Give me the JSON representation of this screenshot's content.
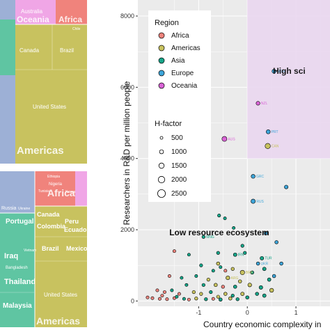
{
  "treemap_top": {
    "tiles": [
      {
        "label": "Australia",
        "region": "Oceania",
        "value": 60,
        "size": "small"
      },
      {
        "label": "Oceania",
        "region": "Oceania",
        "value": 60,
        "size": "region"
      },
      {
        "label": "Africa",
        "region": "Africa",
        "value": 30,
        "size": "region"
      },
      {
        "label": "Canada",
        "region": "Americas",
        "value": 80,
        "size": "small"
      },
      {
        "label": "Brazil",
        "region": "Americas",
        "value": 70,
        "size": "small"
      },
      {
        "label": "Chile",
        "region": "Americas",
        "value": 10,
        "size": "tiny"
      },
      {
        "label": "United States",
        "region": "Americas",
        "value": 500,
        "size": "small"
      },
      {
        "label": "Americas",
        "region": "Americas",
        "value": 0,
        "size": "region"
      }
    ]
  },
  "treemap_bottom": {
    "tiles": [
      {
        "label": "Africa",
        "region": "Africa",
        "size": "region"
      },
      {
        "label": "Ethiopia",
        "region": "Africa",
        "size": "tiny"
      },
      {
        "label": "Nigeria",
        "region": "Africa",
        "size": "tiny"
      },
      {
        "label": "Tunisia",
        "region": "Africa",
        "size": "tiny"
      },
      {
        "label": "Kenya",
        "region": "Africa",
        "size": "tiny"
      },
      {
        "label": "Russia",
        "region": "Europe",
        "size": "tiny"
      },
      {
        "label": "Ukraine",
        "region": "Europe",
        "size": "tiny"
      },
      {
        "label": "Portugal",
        "region": "Europe",
        "size": "medium"
      },
      {
        "label": "Canada",
        "region": "Americas",
        "size": "medium"
      },
      {
        "label": "Colombia",
        "region": "Americas",
        "size": "medium"
      },
      {
        "label": "Peru",
        "region": "Americas",
        "size": "medium"
      },
      {
        "label": "Ecuador",
        "region": "Americas",
        "size": "medium"
      },
      {
        "label": "Brazil",
        "region": "Americas",
        "size": "medium"
      },
      {
        "label": "Mexico",
        "region": "Americas",
        "size": "medium"
      },
      {
        "label": "Malaysia",
        "region": "Asia",
        "size": "medium"
      },
      {
        "label": "Thailand",
        "region": "Asia",
        "size": "large"
      },
      {
        "label": "Bangladesh",
        "region": "Asia",
        "size": "small"
      },
      {
        "label": "Iraq",
        "region": "Asia",
        "size": "large"
      },
      {
        "label": "Vietnam",
        "region": "Asia",
        "size": "tiny"
      },
      {
        "label": "United States",
        "region": "Americas",
        "size": "small"
      },
      {
        "label": "Americas",
        "region": "Americas",
        "size": "region"
      }
    ]
  },
  "colors": {
    "Africa": "#f0837c",
    "Americas": "#c8c25f",
    "Asia": "#5fc5a2",
    "Europe": "#9db0d6",
    "Oceania": "#f0a6e6",
    "highsci_region": "#ead7ef",
    "panel_bg": "#ebebeb",
    "grid": "#ffffff"
  },
  "chart_data": {
    "type": "scatter",
    "xlabel": "Country economic complexity in",
    "ylabel": "Researchers in R&D per million people",
    "xlim": [
      -2.25,
      1.7
    ],
    "ylim": [
      -150,
      8450
    ],
    "x_ticks": [
      -1,
      0,
      1
    ],
    "y_ticks": [
      0,
      2000,
      4000,
      6000,
      8000
    ],
    "grid": true,
    "annotations": [
      {
        "text": "High sci",
        "x": 1.1,
        "y": 6500,
        "color": "#ffffff"
      },
      {
        "text": "Low resource ecosystem",
        "x": -0.1,
        "y": 1960,
        "color": "#7a7a7a"
      }
    ],
    "shaded_region": {
      "x": [
        0.0,
        1.7
      ],
      "y": [
        4000,
        8450
      ]
    },
    "legend": {
      "placement": "top-left",
      "region_title": "Region",
      "regions": [
        {
          "name": "Africa",
          "color": "#f0837c"
        },
        {
          "name": "Americas",
          "color": "#c8c25f"
        },
        {
          "name": "Asia",
          "color": "#17a589"
        },
        {
          "name": "Europe",
          "color": "#3da5d9"
        },
        {
          "name": "Oceania",
          "color": "#d963d6"
        }
      ],
      "size_title": "H-factor",
      "sizes": [
        "500",
        "1000",
        "1500",
        "2000",
        "2500"
      ]
    },
    "points": [
      {
        "label": "NOR",
        "region": "Europe",
        "x": 0.55,
        "y": 6450,
        "h": 1000
      },
      {
        "label": "NZL",
        "region": "Oceania",
        "x": 0.22,
        "y": 5550,
        "h": 800
      },
      {
        "label": "AUS",
        "region": "Oceania",
        "x": -0.47,
        "y": 4550,
        "h": 1800
      },
      {
        "label": "PRT",
        "region": "Europe",
        "x": 0.43,
        "y": 4750,
        "h": 1000
      },
      {
        "label": "CAN",
        "region": "Americas",
        "x": 0.42,
        "y": 4350,
        "h": 2200
      },
      {
        "label": "GRC",
        "region": "Europe",
        "x": 0.12,
        "y": 3500,
        "h": 900
      },
      {
        "label": "RUS",
        "region": "Europe",
        "x": 0.12,
        "y": 2800,
        "h": 1200
      },
      {
        "label": "",
        "region": "Europe",
        "x": 0.8,
        "y": 3200,
        "h": 700
      },
      {
        "label": "",
        "region": "Asia",
        "x": -0.58,
        "y": 2400,
        "h": 400
      },
      {
        "label": "",
        "region": "Asia",
        "x": -0.46,
        "y": 2320,
        "h": 300
      },
      {
        "label": "",
        "region": "Asia",
        "x": -0.28,
        "y": 2050,
        "h": 300
      },
      {
        "label": "",
        "region": "Europe",
        "x": 0.38,
        "y": 1900,
        "h": 600
      },
      {
        "label": "",
        "region": "Europe",
        "x": 0.6,
        "y": 1650,
        "h": 500
      },
      {
        "label": "",
        "region": "Asia",
        "x": -0.1,
        "y": 1550,
        "h": 400
      },
      {
        "label": "TUR",
        "region": "Asia",
        "x": 0.3,
        "y": 1200,
        "h": 700
      },
      {
        "label": "IRN",
        "region": "Asia",
        "x": -0.25,
        "y": 1300,
        "h": 600
      },
      {
        "label": "MNG",
        "region": "Asia",
        "x": -0.9,
        "y": 1800,
        "h": 400
      },
      {
        "label": "",
        "region": "Africa",
        "x": -1.5,
        "y": 1400,
        "h": 300
      },
      {
        "label": "",
        "region": "Asia",
        "x": -1.2,
        "y": 1300,
        "h": 300
      },
      {
        "label": "",
        "region": "Asia",
        "x": -0.6,
        "y": 1350,
        "h": 400
      },
      {
        "label": "",
        "region": "Asia",
        "x": -0.05,
        "y": 1350,
        "h": 400
      },
      {
        "label": "",
        "region": "Americas",
        "x": -0.6,
        "y": 1050,
        "h": 500
      },
      {
        "label": "",
        "region": "Asia",
        "x": -0.95,
        "y": 1000,
        "h": 400
      },
      {
        "label": "",
        "region": "Asia",
        "x": -0.7,
        "y": 850,
        "h": 300
      },
      {
        "label": "",
        "region": "Asia",
        "x": -0.55,
        "y": 950,
        "h": 300
      },
      {
        "label": "",
        "region": "Americas",
        "x": -0.3,
        "y": 900,
        "h": 400
      },
      {
        "label": "",
        "region": "Asia",
        "x": 0.1,
        "y": 800,
        "h": 500
      },
      {
        "label": "BRA",
        "region": "Americas",
        "x": -0.1,
        "y": 800,
        "h": 1300
      },
      {
        "label": "",
        "region": "Africa",
        "x": -0.45,
        "y": 850,
        "h": 300
      },
      {
        "label": "",
        "region": "Asia",
        "x": 0.35,
        "y": 900,
        "h": 600
      },
      {
        "label": "",
        "region": "Europe",
        "x": 0.7,
        "y": 1050,
        "h": 500
      },
      {
        "label": "UKR",
        "region": "Europe",
        "x": 0.22,
        "y": 1050,
        "h": 500
      },
      {
        "label": "",
        "region": "Africa",
        "x": -1.6,
        "y": 700,
        "h": 300
      },
      {
        "label": "",
        "region": "Asia",
        "x": -1.35,
        "y": 650,
        "h": 300
      },
      {
        "label": "",
        "region": "Asia",
        "x": -1.05,
        "y": 700,
        "h": 300
      },
      {
        "label": "",
        "region": "Americas",
        "x": -0.8,
        "y": 600,
        "h": 400
      },
      {
        "label": "ARG",
        "region": "Americas",
        "x": -0.4,
        "y": 650,
        "h": 800
      },
      {
        "label": "",
        "region": "Americas",
        "x": -0.15,
        "y": 550,
        "h": 500
      },
      {
        "label": "",
        "region": "Asia",
        "x": 0.45,
        "y": 600,
        "h": 600
      },
      {
        "label": "",
        "region": "Europe",
        "x": 0.55,
        "y": 700,
        "h": 500
      },
      {
        "label": "",
        "region": "Asia",
        "x": -1.25,
        "y": 450,
        "h": 300
      },
      {
        "label": "",
        "region": "Asia",
        "x": -0.9,
        "y": 450,
        "h": 400
      },
      {
        "label": "",
        "region": "Americas",
        "x": -0.65,
        "y": 450,
        "h": 500
      },
      {
        "label": "",
        "region": "Africa",
        "x": -0.5,
        "y": 400,
        "h": 400
      },
      {
        "label": "",
        "region": "Asia",
        "x": -0.25,
        "y": 400,
        "h": 500
      },
      {
        "label": "",
        "region": "Americas",
        "x": 0.05,
        "y": 450,
        "h": 800
      },
      {
        "label": "",
        "region": "Asia",
        "x": 0.28,
        "y": 380,
        "h": 700
      },
      {
        "label": "",
        "region": "Americas",
        "x": 0.5,
        "y": 300,
        "h": 900
      },
      {
        "label": "",
        "region": "Africa",
        "x": -1.85,
        "y": 300,
        "h": 300
      },
      {
        "label": "",
        "region": "Africa",
        "x": -1.7,
        "y": 250,
        "h": 300
      },
      {
        "label": "",
        "region": "Asia",
        "x": -1.55,
        "y": 300,
        "h": 300
      },
      {
        "label": "",
        "region": "Africa",
        "x": -1.4,
        "y": 200,
        "h": 300
      },
      {
        "label": "",
        "region": "Americas",
        "x": -1.1,
        "y": 250,
        "h": 400
      },
      {
        "label": "",
        "region": "Americas",
        "x": -0.95,
        "y": 200,
        "h": 400
      },
      {
        "label": "",
        "region": "Asia",
        "x": -0.75,
        "y": 250,
        "h": 400
      },
      {
        "label": "",
        "region": "Americas",
        "x": -0.45,
        "y": 200,
        "h": 500
      },
      {
        "label": "",
        "region": "Asia",
        "x": -0.3,
        "y": 150,
        "h": 400
      },
      {
        "label": "",
        "region": "Americas",
        "x": -0.1,
        "y": 200,
        "h": 600
      },
      {
        "label": "",
        "region": "Asia",
        "x": 0.2,
        "y": 200,
        "h": 500
      },
      {
        "label": "",
        "region": "Africa",
        "x": -2.05,
        "y": 100,
        "h": 300
      },
      {
        "label": "",
        "region": "Africa",
        "x": -1.95,
        "y": 80,
        "h": 300
      },
      {
        "label": "",
        "region": "Africa",
        "x": -1.8,
        "y": 60,
        "h": 300
      },
      {
        "label": "",
        "region": "Africa",
        "x": -1.65,
        "y": 50,
        "h": 300
      },
      {
        "label": "",
        "region": "Africa",
        "x": -1.5,
        "y": 80,
        "h": 300
      },
      {
        "label": "",
        "region": "Asia",
        "x": -1.3,
        "y": 60,
        "h": 300
      },
      {
        "label": "",
        "region": "Africa",
        "x": -1.2,
        "y": 40,
        "h": 300
      },
      {
        "label": "",
        "region": "Americas",
        "x": -1.05,
        "y": 70,
        "h": 400
      },
      {
        "label": "",
        "region": "Asia",
        "x": -0.85,
        "y": 50,
        "h": 400
      },
      {
        "label": "",
        "region": "Africa",
        "x": -0.7,
        "y": 60,
        "h": 300
      },
      {
        "label": "",
        "region": "Asia",
        "x": -0.55,
        "y": 40,
        "h": 500
      },
      {
        "label": "",
        "region": "Americas",
        "x": -0.35,
        "y": 70,
        "h": 500
      },
      {
        "label": "",
        "region": "Asia",
        "x": -0.2,
        "y": 50,
        "h": 400
      },
      {
        "label": "",
        "region": "Asia",
        "x": 0.0,
        "y": 100,
        "h": 500
      },
      {
        "label": "",
        "region": "Africa",
        "x": -1.75,
        "y": 150,
        "h": 300
      },
      {
        "label": "",
        "region": "Asia",
        "x": -1.45,
        "y": 120,
        "h": 300
      },
      {
        "label": "",
        "region": "Americas",
        "x": -0.6,
        "y": 120,
        "h": 400
      },
      {
        "label": "",
        "region": "Asia",
        "x": 0.35,
        "y": 150,
        "h": 600
      }
    ]
  }
}
